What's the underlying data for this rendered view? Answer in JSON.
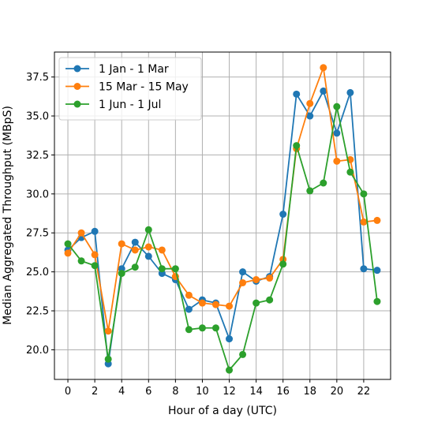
{
  "chart_data": {
    "type": "line",
    "title": "",
    "xlabel": "Hour of a day (UTC)",
    "ylabel": "Median Aggregated Throughput (MBpS)",
    "x": [
      0,
      1,
      2,
      3,
      4,
      5,
      6,
      7,
      8,
      9,
      10,
      11,
      12,
      13,
      14,
      15,
      16,
      17,
      18,
      19,
      20,
      21,
      22,
      23
    ],
    "xlim": [
      -1,
      24
    ],
    "ylim": [
      18.1,
      39.1
    ],
    "xticks": [
      0,
      2,
      4,
      6,
      8,
      10,
      12,
      14,
      16,
      18,
      20,
      22
    ],
    "yticks": [
      20.0,
      22.5,
      25.0,
      27.5,
      30.0,
      32.5,
      35.0,
      37.5
    ],
    "xtick_labels": [
      "0",
      "2",
      "4",
      "6",
      "8",
      "10",
      "12",
      "14",
      "16",
      "18",
      "20",
      "22"
    ],
    "ytick_labels": [
      "20.0",
      "22.5",
      "25.0",
      "27.5",
      "30.0",
      "32.5",
      "35.0",
      "37.5"
    ],
    "grid": true,
    "legend_position": "top-left",
    "series": [
      {
        "name": "1 Jan - 1 Mar",
        "color": "#1f77b4",
        "values": [
          26.4,
          27.2,
          27.6,
          19.1,
          25.2,
          26.9,
          26.0,
          24.9,
          24.5,
          22.6,
          23.2,
          23.0,
          20.7,
          25.0,
          24.4,
          24.7,
          28.7,
          36.4,
          35.0,
          36.6,
          33.9,
          36.5,
          25.2,
          25.1
        ]
      },
      {
        "name": "15 Mar - 15 May",
        "color": "#ff7f0e",
        "values": [
          26.2,
          27.5,
          26.1,
          21.2,
          26.8,
          26.4,
          26.6,
          26.4,
          24.7,
          23.5,
          23.0,
          22.9,
          22.8,
          24.3,
          24.5,
          24.6,
          25.8,
          32.9,
          35.8,
          38.1,
          32.1,
          32.2,
          28.2,
          28.3
        ]
      },
      {
        "name": "1 Jun - 1 Jul",
        "color": "#2ca02c",
        "values": [
          26.8,
          25.7,
          25.4,
          19.4,
          24.9,
          25.3,
          27.7,
          25.2,
          25.2,
          21.3,
          21.4,
          21.4,
          18.7,
          19.7,
          23.0,
          23.2,
          25.5,
          33.1,
          30.2,
          30.7,
          35.6,
          31.4,
          30.0,
          23.1
        ]
      }
    ]
  }
}
